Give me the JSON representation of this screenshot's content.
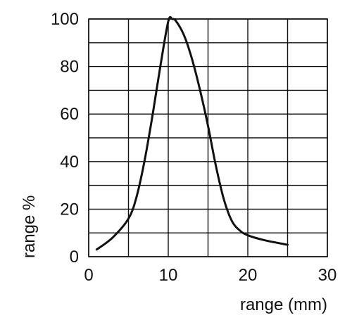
{
  "chart_data": {
    "type": "line",
    "title": "",
    "xlabel": "range (mm)",
    "ylabel": "range %",
    "xlim": [
      0,
      30
    ],
    "ylim": [
      0,
      100
    ],
    "x_ticks": [
      0,
      10,
      20,
      30
    ],
    "y_ticks": [
      0,
      20,
      40,
      60,
      80,
      100
    ],
    "x_grid": [
      0,
      5,
      10,
      15,
      20,
      25,
      30
    ],
    "y_grid": [
      0,
      10,
      20,
      30,
      40,
      50,
      60,
      70,
      80,
      90,
      100
    ],
    "grid": true,
    "legend": "none",
    "line_color": "#111111",
    "series": [
      {
        "x": [
          1,
          3,
          5,
          6,
          7,
          8,
          9,
          10,
          10.5,
          11,
          12,
          13,
          14,
          15,
          16,
          17,
          18,
          19,
          20,
          22,
          25
        ],
        "y": [
          3,
          8,
          16,
          25,
          40,
          59,
          80,
          99,
          100,
          99,
          93,
          83,
          70,
          55,
          38,
          24,
          15,
          11,
          9,
          7,
          5
        ]
      }
    ]
  }
}
